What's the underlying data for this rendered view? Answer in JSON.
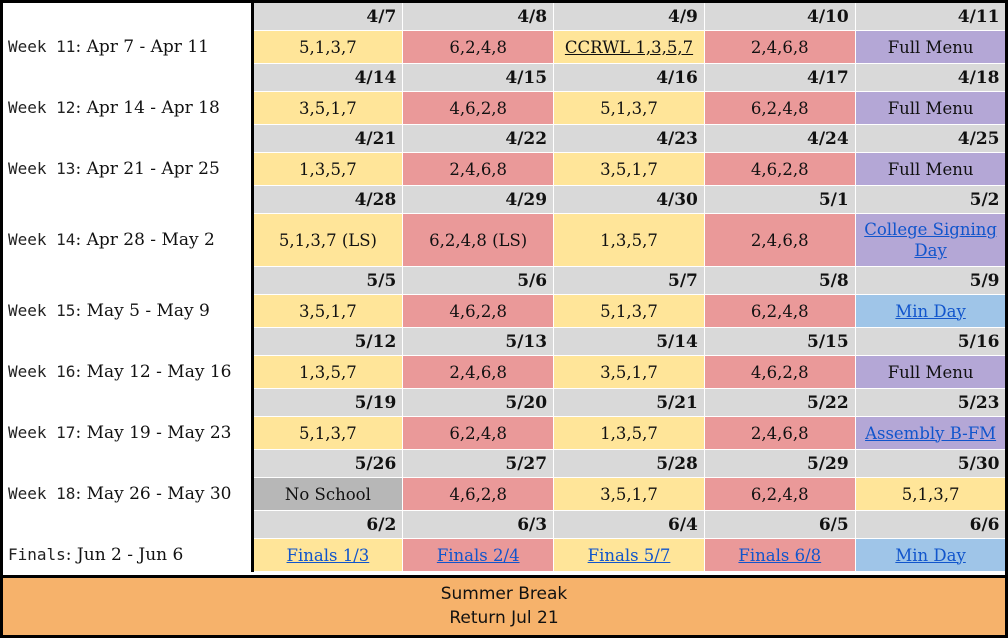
{
  "colors": {
    "A_day": "#ffe599",
    "B_day": "#ea9999",
    "full_menu": "#b4a7d6",
    "min_day": "#9fc5e8",
    "no_school": "#b7b7b7",
    "date_header": "#d9d9d9",
    "summer": "#f6b26b",
    "link": "#1155cc"
  },
  "weeks": [
    {
      "week_prefix": "Week 11",
      "range": ": Apr 7 - Apr 11",
      "dates": [
        "4/7",
        "4/8",
        "4/9",
        "4/10",
        "4/11"
      ],
      "cells": [
        {
          "text": "5,1,3,7",
          "color": "yellow"
        },
        {
          "text": "6,2,4,8",
          "color": "red"
        },
        {
          "text": "CCRWL 1,3,5,7",
          "color": "yellow",
          "style": "ul"
        },
        {
          "text": "2,4,6,8",
          "color": "red"
        },
        {
          "text": "Full Menu",
          "color": "purple"
        }
      ]
    },
    {
      "week_prefix": "Week 12",
      "range": ": Apr 14 - Apr 18",
      "dates": [
        "4/14",
        "4/15",
        "4/16",
        "4/17",
        "4/18"
      ],
      "cells": [
        {
          "text": "3,5,1,7",
          "color": "yellow"
        },
        {
          "text": "4,6,2,8",
          "color": "red"
        },
        {
          "text": "5,1,3,7",
          "color": "yellow"
        },
        {
          "text": "6,2,4,8",
          "color": "red"
        },
        {
          "text": "Full Menu",
          "color": "purple"
        }
      ]
    },
    {
      "week_prefix": "Week 13",
      "range": ": Apr 21 - Apr 25",
      "dates": [
        "4/21",
        "4/22",
        "4/23",
        "4/24",
        "4/25"
      ],
      "cells": [
        {
          "text": "1,3,5,7",
          "color": "yellow"
        },
        {
          "text": "2,4,6,8",
          "color": "red"
        },
        {
          "text": "3,5,1,7",
          "color": "yellow"
        },
        {
          "text": "4,6,2,8",
          "color": "red"
        },
        {
          "text": "Full Menu",
          "color": "purple"
        }
      ]
    },
    {
      "week_prefix": "Week 14",
      "range": ": Apr 28 - May 2",
      "tall": true,
      "dates": [
        "4/28",
        "4/29",
        "4/30",
        "5/1",
        "5/2"
      ],
      "cells": [
        {
          "text": "5,1,3,7 (LS)",
          "color": "yellow"
        },
        {
          "text": "6,2,4,8 (LS)",
          "color": "red"
        },
        {
          "text": "1,3,5,7",
          "color": "yellow"
        },
        {
          "text": "2,4,6,8",
          "color": "red"
        },
        {
          "text": "College Signing Day",
          "color": "purple",
          "style": "link",
          "wrap": true
        }
      ]
    },
    {
      "week_prefix": "Week 15",
      "range": ": May 5 - May 9",
      "dates": [
        "5/5",
        "5/6",
        "5/7",
        "5/8",
        "5/9"
      ],
      "cells": [
        {
          "text": "3,5,1,7",
          "color": "yellow"
        },
        {
          "text": "4,6,2,8",
          "color": "red"
        },
        {
          "text": "5,1,3,7",
          "color": "yellow"
        },
        {
          "text": "6,2,4,8",
          "color": "red"
        },
        {
          "text": "Min Day",
          "color": "blue",
          "style": "link"
        }
      ]
    },
    {
      "week_prefix": "Week 16",
      "range": ": May 12 - May 16",
      "dates": [
        "5/12",
        "5/13",
        "5/14",
        "5/15",
        "5/16"
      ],
      "cells": [
        {
          "text": "1,3,5,7",
          "color": "yellow"
        },
        {
          "text": "2,4,6,8",
          "color": "red"
        },
        {
          "text": "3,5,1,7",
          "color": "yellow"
        },
        {
          "text": "4,6,2,8",
          "color": "red"
        },
        {
          "text": "Full Menu",
          "color": "purple"
        }
      ]
    },
    {
      "week_prefix": "Week 17",
      "range": ": May 19 - May 23",
      "dates": [
        "5/19",
        "5/20",
        "5/21",
        "5/22",
        "5/23"
      ],
      "cells": [
        {
          "text": "5,1,3,7",
          "color": "yellow"
        },
        {
          "text": "6,2,4,8",
          "color": "red"
        },
        {
          "text": "1,3,5,7",
          "color": "yellow"
        },
        {
          "text": "2,4,6,8",
          "color": "red"
        },
        {
          "text": "Assembly B-FM",
          "color": "purple",
          "style": "link"
        }
      ]
    },
    {
      "week_prefix": "Week 18",
      "range": ": May 26 - May 30",
      "dates": [
        "5/26",
        "5/27",
        "5/28",
        "5/29",
        "5/30"
      ],
      "cells": [
        {
          "text": "No School",
          "color": "gray"
        },
        {
          "text": "4,6,2,8",
          "color": "red"
        },
        {
          "text": "3,5,1,7",
          "color": "yellow"
        },
        {
          "text": "6,2,4,8",
          "color": "red"
        },
        {
          "text": "5,1,3,7",
          "color": "yellow"
        }
      ]
    },
    {
      "week_prefix": "Finals",
      "range": ": Jun 2 - Jun 6",
      "dates": [
        "6/2",
        "6/3",
        "6/4",
        "6/5",
        "6/6"
      ],
      "cells": [
        {
          "text": "Finals 1/3",
          "color": "yellow",
          "style": "link"
        },
        {
          "text": "Finals 2/4",
          "color": "red",
          "style": "link"
        },
        {
          "text": "Finals 5/7",
          "color": "yellow",
          "style": "link"
        },
        {
          "text": "Finals 6/8",
          "color": "red",
          "style": "link"
        },
        {
          "text": "Min Day",
          "color": "blue",
          "style": "link"
        }
      ]
    }
  ],
  "summer": {
    "line1": "Summer Break",
    "line2": "Return Jul 21"
  }
}
